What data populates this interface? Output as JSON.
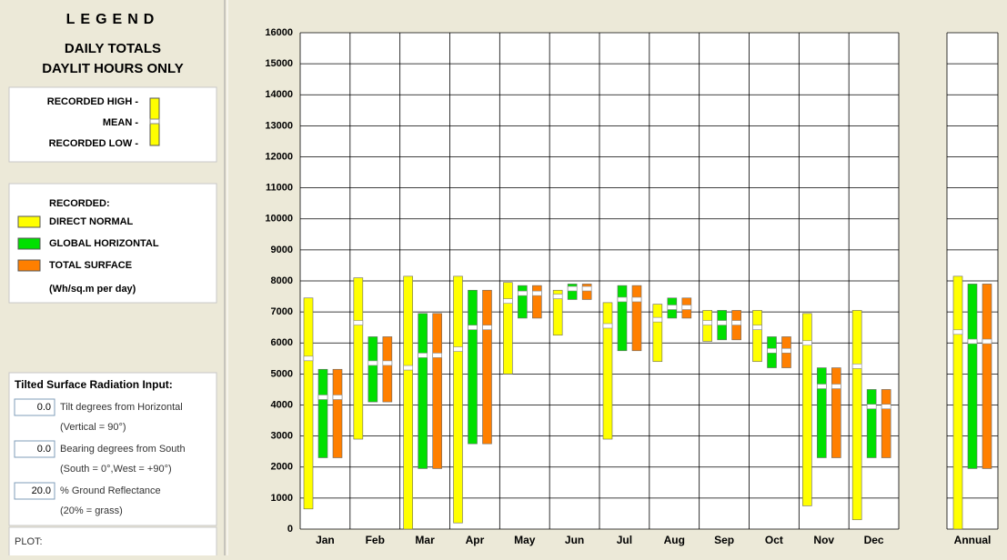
{
  "chart_data": {
    "type": "range_bar",
    "categories": [
      "Jan",
      "Feb",
      "Mar",
      "Apr",
      "May",
      "Jun",
      "Jul",
      "Aug",
      "Sep",
      "Oct",
      "Nov",
      "Dec",
      "Annual"
    ],
    "series": [
      {
        "name": "DIRECT NORMAL",
        "color": "#ffff00",
        "low": [
          650,
          2900,
          0,
          200,
          5000,
          6250,
          2900,
          5400,
          6050,
          5400,
          750,
          300,
          0
        ],
        "high": [
          7450,
          8100,
          8150,
          8150,
          7950,
          7700,
          7300,
          7250,
          7050,
          7050,
          6950,
          7050,
          8150
        ],
        "mean": [
          5500,
          6650,
          5200,
          5800,
          7350,
          7500,
          6550,
          6750,
          6650,
          6500,
          6000,
          5250,
          6350
        ]
      },
      {
        "name": "GLOBAL HORIZONTAL",
        "color": "#00e000",
        "low": [
          2300,
          4100,
          1950,
          2750,
          6800,
          7400,
          5750,
          6800,
          6100,
          5200,
          2300,
          2300,
          1950
        ],
        "high": [
          5150,
          6200,
          6950,
          7700,
          7850,
          7900,
          7850,
          7450,
          7050,
          6200,
          5200,
          4500,
          7900
        ],
        "mean": [
          4250,
          5350,
          5600,
          6500,
          7600,
          7750,
          7400,
          7150,
          6650,
          5750,
          4600,
          3950,
          6050
        ]
      },
      {
        "name": "TOTAL SURFACE",
        "color": "#ff7f00",
        "low": [
          2300,
          4100,
          1950,
          2750,
          6800,
          7400,
          5750,
          6800,
          6100,
          5200,
          2300,
          2300,
          1950
        ],
        "high": [
          5150,
          6200,
          6950,
          7700,
          7850,
          7900,
          7850,
          7450,
          7050,
          6200,
          5200,
          4500,
          7900
        ],
        "mean": [
          4250,
          5350,
          5600,
          6500,
          7600,
          7750,
          7400,
          7150,
          6650,
          5750,
          4600,
          3950,
          6050
        ]
      }
    ],
    "ylim": [
      0,
      16000
    ],
    "yticks": [
      0,
      1000,
      2000,
      3000,
      4000,
      5000,
      6000,
      7000,
      8000,
      9000,
      10000,
      11000,
      12000,
      13000,
      14000,
      15000,
      16000
    ],
    "grid": true
  },
  "legend_panel": {
    "title": "LEGEND",
    "subtitle": [
      "DAILY TOTALS",
      "DAYLIT HOURS ONLY"
    ],
    "key": [
      "RECORDED HIGH -",
      "MEAN -",
      "RECORDED LOW -"
    ],
    "recorded_heading": "RECORDED:",
    "units": "(Wh/sq.m per day)",
    "tilted": {
      "title": "Tilted Surface Radiation Input:",
      "rows": [
        {
          "value": "0.0",
          "label": "Tilt degrees from Horizontal",
          "note": "(Vertical = 90°)"
        },
        {
          "value": "0.0",
          "label": "Bearing degrees from South",
          "note": "(South = 0°,West = +90°)"
        },
        {
          "value": "20.0",
          "label": "% Ground Reflectance",
          "note": "(20% = grass)"
        }
      ]
    },
    "plot_label": "PLOT:"
  }
}
